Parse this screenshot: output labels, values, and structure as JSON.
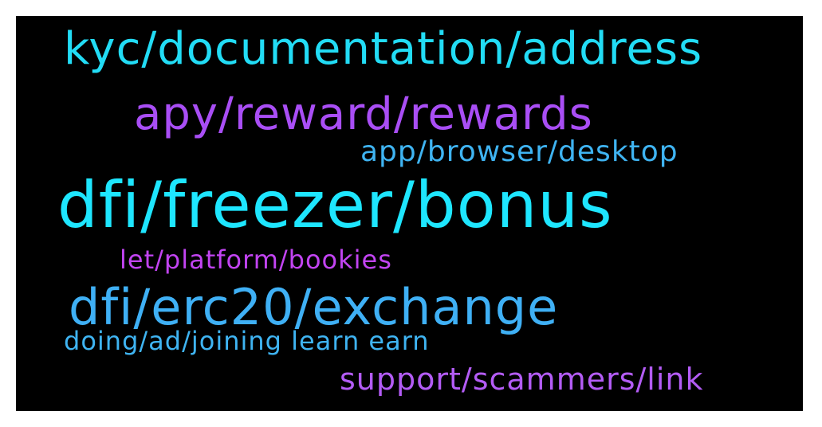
{
  "word_cloud": {
    "background_color": "#000000",
    "words": [
      {
        "text": "kyc/documentation/address",
        "color": "#22dcf5"
      },
      {
        "text": "apy/reward/rewards",
        "color": "#a94ef5"
      },
      {
        "text": "app/browser/desktop",
        "color": "#3fb4f2"
      },
      {
        "text": "dfi/freezer/bonus",
        "color": "#1ee6ff"
      },
      {
        "text": "let/platform/bookies",
        "color": "#c244f2"
      },
      {
        "text": "dfi/erc20/exchange",
        "color": "#3fb0f5"
      },
      {
        "text": "doing/ad/joining learn earn",
        "color": "#3fb4f2"
      },
      {
        "text": "support/scammers/link",
        "color": "#b35cf5"
      }
    ]
  }
}
